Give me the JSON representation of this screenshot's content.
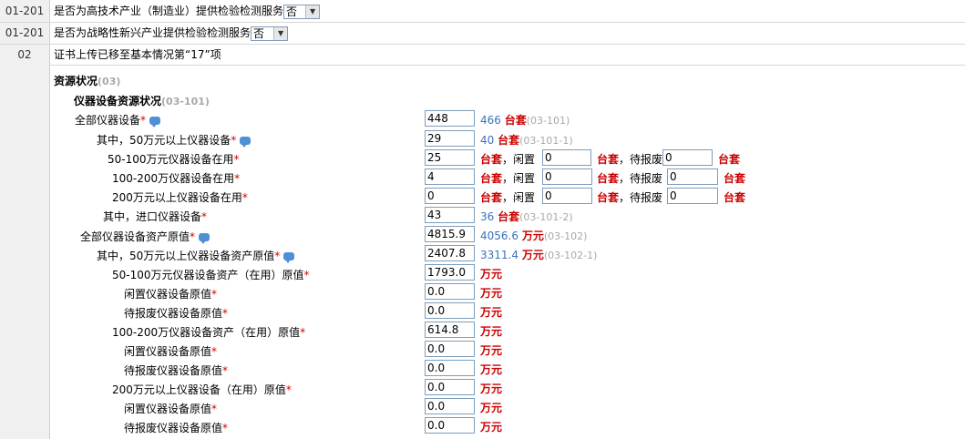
{
  "rows": [
    {
      "code": "01-201",
      "label": "是否为高技术产业（制造业）提供检验检测服务",
      "select": "否"
    },
    {
      "code": "01-201",
      "label": "是否为战略性新兴产业提供检验检测服务",
      "select": "否"
    },
    {
      "code": "02",
      "label": "证书上传已移至基本情况第“17”项"
    }
  ],
  "resource": {
    "title": "资源状况",
    "title_code": "(03)",
    "sub_title": "仪器设备资源状况",
    "sub_code": "(03-101)"
  },
  "req": "*",
  "unit_taoset": "台套",
  "unit_wan": "万元",
  "idle_label": "，闲置",
  "scrap_label": "，待报废",
  "items": {
    "all": {
      "label": "全部仪器设备",
      "value": "448",
      "prev": "466",
      "code": "(03-101)"
    },
    "over50": {
      "label": "其中，50万元以上仪器设备",
      "value": "29",
      "prev": "40",
      "code": "(03-101-1)"
    },
    "r50_100": {
      "label": "50-100万元仪器设备在用",
      "value": "25",
      "idle": "0",
      "scrap": "0"
    },
    "r100_200": {
      "label": "100-200万仪器设备在用",
      "value": "4",
      "idle": "0",
      "scrap": "0"
    },
    "r200": {
      "label": "200万元以上仪器设备在用",
      "value": "0",
      "idle": "0",
      "scrap": "0"
    },
    "imported": {
      "label": "其中，进口仪器设备",
      "value": "43",
      "prev": "36",
      "code": "(03-101-2)"
    },
    "asset_all": {
      "label": "全部仪器设备资产原值",
      "value": "4815.9",
      "prev": "4056.6",
      "code": "(03-102)"
    },
    "asset_over50": {
      "label": "其中，50万元以上仪器设备资产原值",
      "value": "2407.8",
      "prev": "3311.4",
      "code": "(03-102-1)"
    },
    "a50_100": {
      "label": "50-100万元仪器设备资产（在用）原值",
      "value": "1793.0"
    },
    "a50_100_idle": {
      "label": "闲置仪器设备原值",
      "value": "0.0"
    },
    "a50_100_scrap": {
      "label": "待报废仪器设备原值",
      "value": "0.0"
    },
    "a100_200": {
      "label": "100-200万仪器设备资产（在用）原值",
      "value": "614.8"
    },
    "a100_200_idle": {
      "label": "闲置仪器设备原值",
      "value": "0.0"
    },
    "a100_200_scrap": {
      "label": "待报废仪器设备原值",
      "value": "0.0"
    },
    "a200": {
      "label": "200万元以上仪器设备（在用）原值",
      "value": "0.0"
    },
    "a200_idle": {
      "label": "闲置仪器设备原值",
      "value": "0.0"
    },
    "a200_scrap": {
      "label": "待报废仪器设备原值",
      "value": "0.0"
    }
  }
}
